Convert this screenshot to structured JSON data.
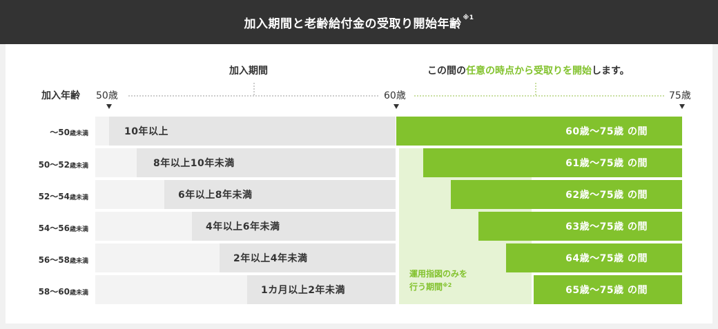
{
  "title": "加入期間と老齢給付金の受取り開始年齢",
  "title_note": "※1",
  "header_row_label": "加入年齢",
  "period_label": "加入期間",
  "receive_label": {
    "pre": "この間の",
    "highlight": "任意の時点から受取りを開始",
    "post": "します。"
  },
  "ticks": {
    "start": "50歳",
    "mid": "60歳",
    "end": "75歳"
  },
  "rows": [
    {
      "age_main": "～50",
      "age_sub": "歳未満",
      "period": "10年以上",
      "receive": "60歳～75歳 の間"
    },
    {
      "age_main": "50～52",
      "age_sub": "歳未満",
      "period": "8年以上10年未満",
      "receive": "61歳～75歳 の間"
    },
    {
      "age_main": "52～54",
      "age_sub": "歳未満",
      "period": "6年以上8年未満",
      "receive": "62歳～75歳 の間"
    },
    {
      "age_main": "54～56",
      "age_sub": "歳未満",
      "period": "4年以上6年未満",
      "receive": "63歳～75歳 の間"
    },
    {
      "age_main": "56～58",
      "age_sub": "歳未満",
      "period": "2年以上4年未満",
      "receive": "64歳～75歳 の間"
    },
    {
      "age_main": "58～60",
      "age_sub": "歳未満",
      "period": "1カ月以上2年未満",
      "receive": "65歳～75歳 の間"
    }
  ],
  "operation_only": {
    "line1": "運用指図のみを",
    "line2": "行う期間",
    "note": "※2"
  },
  "colors": {
    "header_bg": "#333333",
    "green": "#82c22d",
    "pale_green": "#e6f3d4",
    "gray": "#e5e5e5",
    "light_gray": "#f3f3f3"
  }
}
